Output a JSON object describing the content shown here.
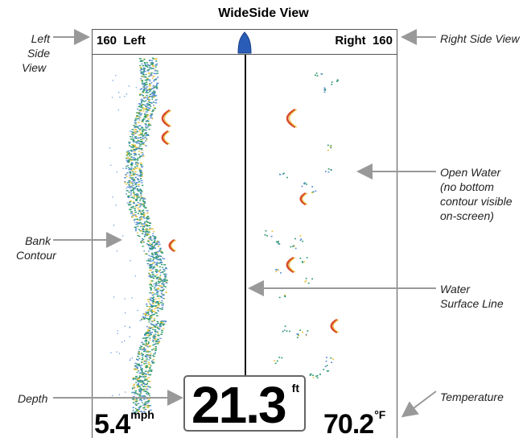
{
  "title": "WideSide View",
  "display": {
    "left_scale": "160  Left",
    "right_scale": "Right  160",
    "depth_value": "21.3",
    "depth_unit": "ft",
    "speed_value": "5.4",
    "speed_unit": "mph",
    "temp_value": "70.2",
    "temp_unit": "°F"
  },
  "callouts": {
    "left_side_view": [
      "Left Side",
      "View"
    ],
    "right_side_view": "Right Side View",
    "open_water": [
      "Open Water",
      "(no bottom",
      "contour visible",
      "on-screen)"
    ],
    "bank_contour": [
      "Bank",
      "Contour"
    ],
    "water_surface_line": [
      "Water",
      "Surface Line"
    ],
    "depth": "Depth",
    "temperature": "Temperature"
  },
  "colors": {
    "sonar_green": "#2e9a6b",
    "sonar_blue": "#5a8fd6",
    "sonar_red": "#d94a2c",
    "sonar_yellow": "#e8c23a",
    "boat_blue": "#2a5db8",
    "arrow_gray": "#999999"
  }
}
